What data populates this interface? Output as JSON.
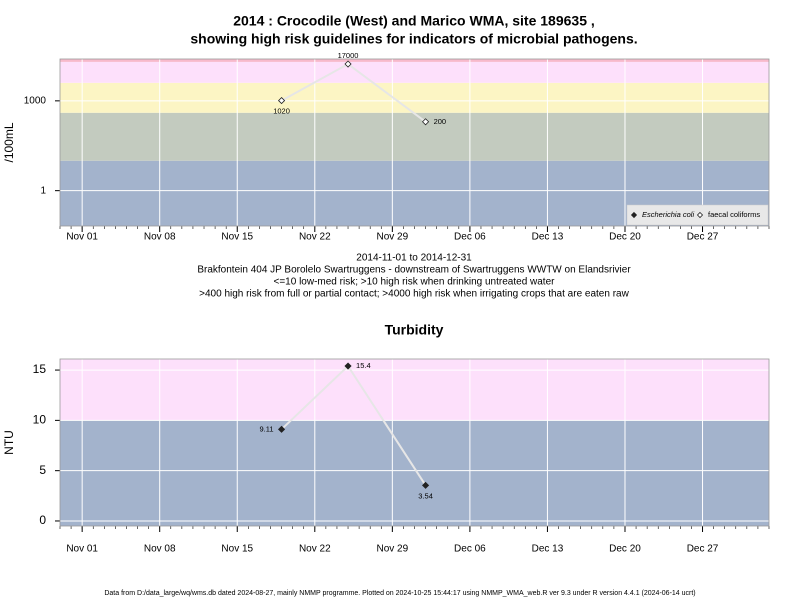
{
  "chart_data": [
    {
      "type": "line",
      "title": [
        "2014 : Crocodile (West) and Marico WMA, site 189635 ,",
        "showing high risk guidelines for indicators of microbial pathogens."
      ],
      "notes": [
        "2014-11-01 to 2014-12-31",
        "Brakfontein 404 JP Borolelo Swartruggens - downstream of Swartruggens WWTW on Elandsrivier",
        "<=10 low-med risk; >10 high risk when drinking untreated water",
        ">400 high risk from full or partial contact; >4000 high risk when irrigating crops that are eaten raw"
      ],
      "y_label": "/100mL",
      "log_y": true,
      "grid": true,
      "legend": "bottom-right",
      "x": [
        "2014-11-19",
        "2014-11-25",
        "2014-12-02"
      ],
      "series": [
        {
          "name": "Escherichia coli",
          "marker": "filled",
          "color": "#222222",
          "values": [
            null,
            null,
            null
          ]
        },
        {
          "name": "faecal coliforms",
          "marker": "open",
          "color": "#222222",
          "values": [
            1020,
            17000,
            200
          ]
        }
      ],
      "line_color": "#e6e6e6",
      "bands": [
        {
          "from": 0.066,
          "to": 10,
          "color": "#a3b3cc"
        },
        {
          "from": 10,
          "to": 400,
          "color": "#c3cbbf"
        },
        {
          "from": 400,
          "to": 4000,
          "color": "#fcf5c4"
        },
        {
          "from": 4000,
          "to": 20000,
          "color": "#fde0fb"
        },
        {
          "from": 20000,
          "to": 25000,
          "color": "#f7b9cb"
        }
      ],
      "xlim": [
        "2014-10-30",
        "2015-01-02"
      ],
      "xticks": [
        {
          "value": "2014-11-01",
          "label": "Nov 01"
        },
        {
          "value": "2014-11-08",
          "label": "Nov 08"
        },
        {
          "value": "2014-11-15",
          "label": "Nov 15"
        },
        {
          "value": "2014-11-22",
          "label": "Nov 22"
        },
        {
          "value": "2014-11-29",
          "label": "Nov 29"
        },
        {
          "value": "2014-12-06",
          "label": "Dec 06"
        },
        {
          "value": "2014-12-13",
          "label": "Dec 13"
        },
        {
          "value": "2014-12-20",
          "label": "Dec 20"
        },
        {
          "value": "2014-12-27",
          "label": "Dec 27"
        }
      ],
      "ylim": [
        0.066,
        25000
      ],
      "yticks": [
        1,
        1000
      ]
    },
    {
      "type": "line",
      "title": [
        "Turbidity"
      ],
      "y_label": "NTU",
      "grid": true,
      "x": [
        "2014-11-19",
        "2014-11-25",
        "2014-12-02"
      ],
      "series": [
        {
          "marker": "filled",
          "color": "#222222",
          "values": [
            9.11,
            15.4,
            3.54
          ]
        }
      ],
      "line_color": "#e6e6e6",
      "bands": [
        {
          "from": -0.5,
          "to": 10,
          "color": "#a3b3cc"
        },
        {
          "from": 10,
          "to": 16.1,
          "color": "#fde0fb"
        }
      ],
      "xlim": [
        "2014-10-30",
        "2015-01-02"
      ],
      "xticks": [
        {
          "value": "2014-11-01",
          "label": "Nov 01"
        },
        {
          "value": "2014-11-08",
          "label": "Nov 08"
        },
        {
          "value": "2014-11-15",
          "label": "Nov 15"
        },
        {
          "value": "2014-11-22",
          "label": "Nov 22"
        },
        {
          "value": "2014-11-29",
          "label": "Nov 29"
        },
        {
          "value": "2014-12-06",
          "label": "Dec 06"
        },
        {
          "value": "2014-12-13",
          "label": "Dec 13"
        },
        {
          "value": "2014-12-20",
          "label": "Dec 20"
        },
        {
          "value": "2014-12-27",
          "label": "Dec 27"
        }
      ],
      "ylim": [
        -0.5,
        16.1
      ],
      "yticks": [
        0,
        5,
        10,
        15
      ]
    }
  ],
  "footer": "Data from D:/data_large/wq/wms.db dated 2024-08-27, mainly NMMP programme. Plotted on 2024-10-25 15:44:17 using NMMP_WMA_web.R ver 9.3 under R version 4.4.1 (2024-06-14 ucrt)"
}
